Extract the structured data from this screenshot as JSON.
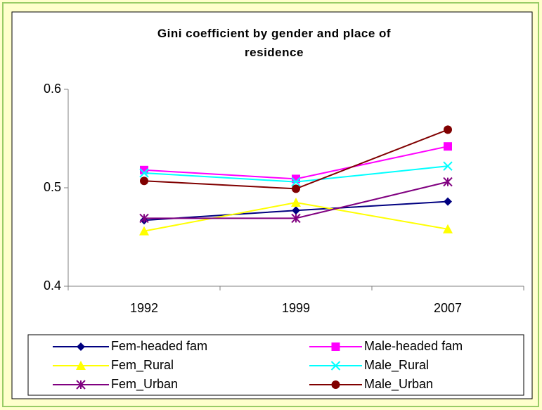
{
  "chart_data": {
    "type": "line",
    "title": "Gini coefficient by gender and place of residence",
    "categories": [
      "1992",
      "1999",
      "2007"
    ],
    "series": [
      {
        "name": "Fem-headed fam",
        "color": "#000080",
        "marker": "diamond",
        "values": [
          0.467,
          0.477,
          0.486
        ]
      },
      {
        "name": "Male-headed fam",
        "color": "#ff00ff",
        "marker": "square",
        "values": [
          0.518,
          0.509,
          0.542
        ]
      },
      {
        "name": "Fem_Rural",
        "color": "#ffff00",
        "marker": "triangle",
        "values": [
          0.456,
          0.485,
          0.458
        ]
      },
      {
        "name": "Male_Rural",
        "color": "#00ffff",
        "marker": "x",
        "values": [
          0.515,
          0.506,
          0.522
        ]
      },
      {
        "name": "Fem_Urban",
        "color": "#800080",
        "marker": "asterisk",
        "values": [
          0.469,
          0.469,
          0.506
        ]
      },
      {
        "name": "Male_Urban",
        "color": "#800000",
        "marker": "circle",
        "values": [
          0.507,
          0.499,
          0.559
        ]
      }
    ],
    "ylim": [
      0.4,
      0.6
    ],
    "yticks": [
      0.4,
      0.5,
      0.6
    ],
    "grid": false
  }
}
